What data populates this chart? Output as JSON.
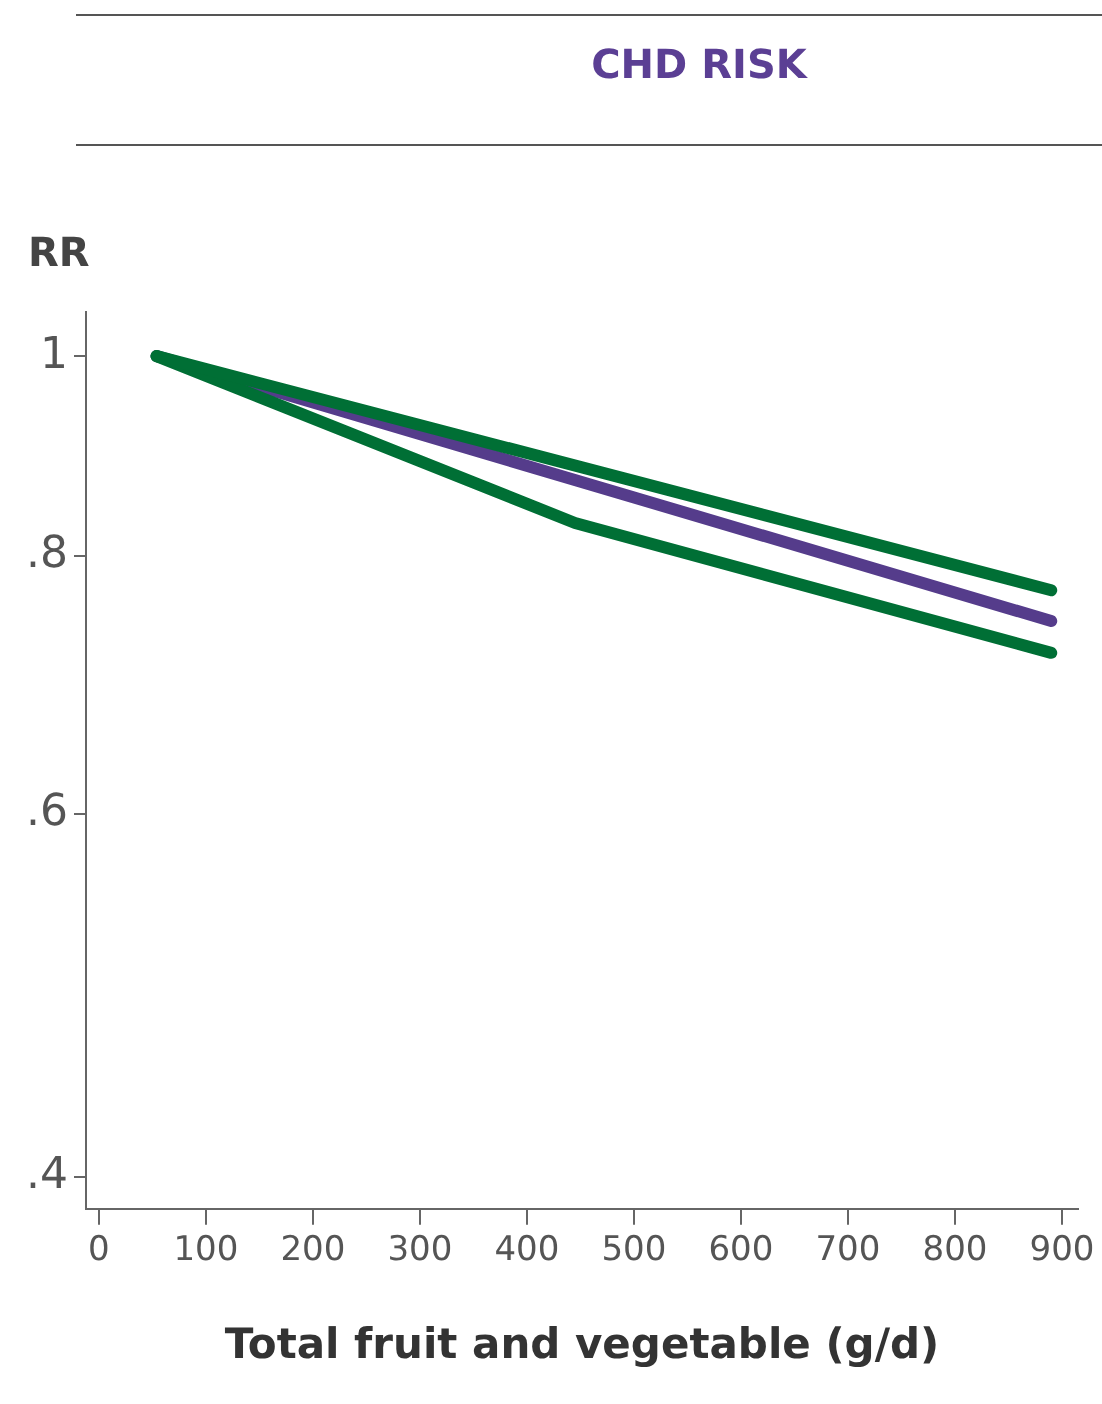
{
  "chart_data": {
    "type": "line",
    "title": "CHD RISK",
    "xlabel": "Total fruit and vegetable (g/d)",
    "ylabel": "RR",
    "log": "y",
    "grid": false,
    "legend": false,
    "xlim": [
      -12,
      915
    ],
    "xticks": [
      0,
      100,
      200,
      300,
      400,
      500,
      600,
      700,
      800,
      900
    ],
    "ylim": [
      0.386,
      1.05
    ],
    "yticks": [
      {
        "value": 1,
        "label": "1"
      },
      {
        "value": 0.8,
        "label": ".8"
      },
      {
        "value": 0.6,
        "label": ".6"
      },
      {
        "value": 0.4,
        "label": ".4"
      }
    ],
    "series": [
      {
        "color": "#006f35",
        "x": [
          54,
          890
        ],
        "values": [
          1,
          0.77
        ]
      },
      {
        "color": "#006f35",
        "x": [
          54,
          445,
          890
        ],
        "values": [
          1,
          0.83,
          0.718
        ]
      },
      {
        "color": "#553c8b",
        "x": [
          54,
          890
        ],
        "values": [
          1,
          0.744
        ]
      }
    ]
  }
}
